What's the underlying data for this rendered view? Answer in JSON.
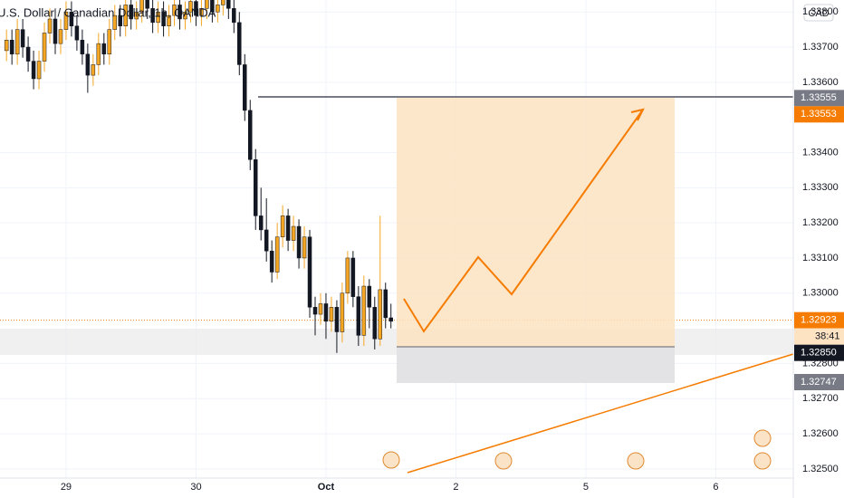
{
  "chart_data": {
    "type": "candlestick",
    "title": "U.S. Dollar / Canadian Dollar, 1h, OANDA",
    "currency": "CAD",
    "up_color": "#f5a623",
    "down_color": "#131722",
    "grid": true,
    "xlim": [
      -12.2,
      134.3
    ],
    "xticks": [
      {
        "value": 0,
        "label": "29"
      },
      {
        "value": 24,
        "label": "30"
      },
      {
        "value": 48,
        "label": "Oct"
      },
      {
        "value": 72,
        "label": "2"
      },
      {
        "value": 96,
        "label": "5"
      },
      {
        "value": 120,
        "label": "6"
      }
    ],
    "ylim": [
      1.32474,
      1.33834
    ],
    "yticks": [
      {
        "value": 1.325,
        "label": "1.32500"
      },
      {
        "value": 1.326,
        "label": "1.32600"
      },
      {
        "value": 1.327,
        "label": "1.32700"
      },
      {
        "value": 1.328,
        "label": "1.32800"
      },
      {
        "value": 1.33,
        "label": "1.33000"
      },
      {
        "value": 1.331,
        "label": "1.33100"
      },
      {
        "value": 1.332,
        "label": "1.33200"
      },
      {
        "value": 1.333,
        "label": "1.33300"
      },
      {
        "value": 1.334,
        "label": "1.33400"
      },
      {
        "value": 1.336,
        "label": "1.33600"
      },
      {
        "value": 1.337,
        "label": "1.33700"
      },
      {
        "value": 1.338,
        "label": "1.33800"
      }
    ],
    "x": [
      -11,
      -10,
      -9,
      -8,
      -7,
      -6,
      -5,
      -4,
      -3,
      -2,
      -1,
      0,
      1,
      2,
      3,
      4,
      5,
      6,
      7,
      8,
      9,
      10,
      11,
      12,
      13,
      14,
      15,
      16,
      17,
      18,
      19,
      20,
      21,
      22,
      23,
      24,
      25,
      26,
      27,
      28,
      29,
      30,
      31,
      32,
      33,
      34,
      35,
      36,
      37,
      38,
      39,
      40,
      41,
      42,
      43,
      44,
      45,
      46,
      47,
      48,
      49,
      50,
      51,
      52,
      53,
      54,
      55,
      56,
      57,
      58,
      59,
      60
    ],
    "candles": [
      [
        1.3369,
        1.3375,
        1.3366,
        1.3372
      ],
      [
        1.3372,
        1.3375,
        1.3365,
        1.3368
      ],
      [
        1.3368,
        1.3378,
        1.3365,
        1.3375
      ],
      [
        1.3375,
        1.3378,
        1.3367,
        1.337
      ],
      [
        1.337,
        1.3373,
        1.3363,
        1.3366
      ],
      [
        1.3366,
        1.3369,
        1.3358,
        1.3361
      ],
      [
        1.3361,
        1.3369,
        1.3358,
        1.3366
      ],
      [
        1.3366,
        1.3377,
        1.3363,
        1.3374
      ],
      [
        1.3374,
        1.3381,
        1.3371,
        1.3378
      ],
      [
        1.3378,
        1.3381,
        1.3368,
        1.3371
      ],
      [
        1.3371,
        1.3378,
        1.3368,
        1.3375
      ],
      [
        1.3375,
        1.3383,
        1.3372,
        1.338
      ],
      [
        1.338,
        1.3383,
        1.3373,
        1.3376
      ],
      [
        1.3376,
        1.3379,
        1.3369,
        1.3372
      ],
      [
        1.3372,
        1.3375,
        1.3365,
        1.3368
      ],
      [
        1.3368,
        1.3371,
        1.3357,
        1.3362
      ],
      [
        1.3362,
        1.3368,
        1.3359,
        1.3365
      ],
      [
        1.3365,
        1.3374,
        1.3362,
        1.3371
      ],
      [
        1.3371,
        1.3374,
        1.3365,
        1.3368
      ],
      [
        1.3368,
        1.3378,
        1.3365,
        1.3375
      ],
      [
        1.3375,
        1.3382,
        1.3372,
        1.3379
      ],
      [
        1.3379,
        1.3382,
        1.3373,
        1.3376
      ],
      [
        1.3376,
        1.3385,
        1.3373,
        1.3382
      ],
      [
        1.3382,
        1.3385,
        1.3375,
        1.3378
      ],
      [
        1.3378,
        1.3383,
        1.3375,
        1.338
      ],
      [
        1.338,
        1.3387,
        1.3377,
        1.3384
      ],
      [
        1.3384,
        1.3387,
        1.3378,
        1.3381
      ],
      [
        1.3381,
        1.3384,
        1.3374,
        1.3377
      ],
      [
        1.3377,
        1.3383,
        1.3374,
        1.338
      ],
      [
        1.338,
        1.3383,
        1.3373,
        1.3376
      ],
      [
        1.3376,
        1.3382,
        1.3373,
        1.3379
      ],
      [
        1.3379,
        1.3385,
        1.3376,
        1.3382
      ],
      [
        1.3382,
        1.3385,
        1.3375,
        1.3378
      ],
      [
        1.3378,
        1.3383,
        1.3375,
        1.338
      ],
      [
        1.338,
        1.3386,
        1.3377,
        1.3383
      ],
      [
        1.3383,
        1.3386,
        1.3376,
        1.3379
      ],
      [
        1.3379,
        1.3384,
        1.3376,
        1.3381
      ],
      [
        1.3381,
        1.3387,
        1.3378,
        1.3384
      ],
      [
        1.3384,
        1.3387,
        1.3377,
        1.338
      ],
      [
        1.338,
        1.3385,
        1.3377,
        1.3382
      ],
      [
        1.3382,
        1.3388,
        1.3379,
        1.3385
      ],
      [
        1.3385,
        1.3388,
        1.3378,
        1.3381
      ],
      [
        1.3381,
        1.3384,
        1.3374,
        1.3377
      ],
      [
        1.3377,
        1.338,
        1.3362,
        1.3365
      ],
      [
        1.3365,
        1.3368,
        1.3349,
        1.3352
      ],
      [
        1.3352,
        1.3355,
        1.3335,
        1.3338
      ],
      [
        1.3338,
        1.3341,
        1.3318,
        1.3322
      ],
      [
        1.3322,
        1.333,
        1.3315,
        1.3318
      ],
      [
        1.3318,
        1.3327,
        1.3309,
        1.3312
      ],
      [
        1.3312,
        1.3315,
        1.3303,
        1.3306
      ],
      [
        1.3306,
        1.332,
        1.3304,
        1.3316
      ],
      [
        1.3316,
        1.3325,
        1.3313,
        1.3322
      ],
      [
        1.3322,
        1.3324,
        1.3312,
        1.3315
      ],
      [
        1.3315,
        1.3322,
        1.3312,
        1.3319
      ],
      [
        1.3319,
        1.3321,
        1.3307,
        1.331
      ],
      [
        1.331,
        1.3319,
        1.3307,
        1.3316
      ],
      [
        1.3316,
        1.3318,
        1.3293,
        1.3296
      ],
      [
        1.3296,
        1.3299,
        1.3288,
        1.3294
      ],
      [
        1.3294,
        1.33,
        1.3291,
        1.3297
      ],
      [
        1.3297,
        1.33,
        1.3287,
        1.3292
      ],
      [
        1.3292,
        1.3299,
        1.3289,
        1.3296
      ],
      [
        1.3296,
        1.3298,
        1.3283,
        1.3289
      ],
      [
        1.3289,
        1.3303,
        1.3286,
        1.33
      ],
      [
        1.33,
        1.3312,
        1.3297,
        1.331
      ],
      [
        1.331,
        1.3312,
        1.3296,
        1.3299
      ],
      [
        1.3299,
        1.3302,
        1.3285,
        1.3288
      ],
      [
        1.3288,
        1.3305,
        1.3285,
        1.3302
      ],
      [
        1.3302,
        1.3304,
        1.329,
        1.3296
      ],
      [
        1.3296,
        1.3299,
        1.3284,
        1.3287
      ],
      [
        1.3287,
        1.3322,
        1.3285,
        1.3301
      ],
      [
        1.3301,
        1.3303,
        1.329,
        1.3293
      ],
      [
        1.3293,
        1.3297,
        1.329,
        1.3292
      ]
    ],
    "price_labels": [
      {
        "value": 1.33555,
        "label": "1.33555",
        "color": "#787b86"
      },
      {
        "value": 1.33553,
        "label": "1.33553",
        "color": "#f57c00"
      },
      {
        "value": 1.32923,
        "label": "1.32923",
        "color": "#f57c00"
      },
      {
        "value": 1.3285,
        "label": "1.32850",
        "color": "#131722"
      },
      {
        "value": 1.32747,
        "label": "1.32747",
        "color": "#787b86"
      }
    ],
    "countdown": "38:41",
    "events": [
      "1",
      "3",
      "3",
      "3",
      "4"
    ]
  }
}
